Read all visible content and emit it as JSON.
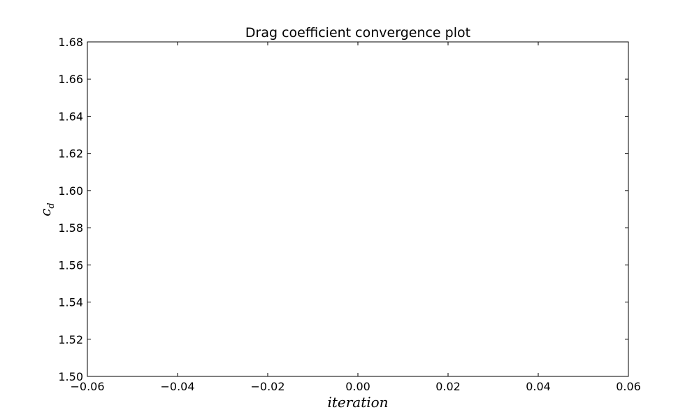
{
  "chart_data": {
    "type": "line",
    "title": "Drag coefficient convergence plot",
    "xlabel": "iteration",
    "ylabel": "c",
    "ylabel_subscript": "d",
    "xlim": [
      -0.06,
      0.06
    ],
    "ylim": [
      1.5,
      1.68
    ],
    "xticks": [
      -0.06,
      -0.04,
      -0.02,
      0.0,
      0.02,
      0.04,
      0.06
    ],
    "yticks": [
      1.5,
      1.52,
      1.54,
      1.56,
      1.58,
      1.6,
      1.62,
      1.64,
      1.66,
      1.68
    ],
    "xtick_labels": [
      "−0.06",
      "−0.04",
      "−0.02",
      "0.00",
      "0.02",
      "0.04",
      "0.06"
    ],
    "ytick_labels": [
      "1.50",
      "1.52",
      "1.54",
      "1.56",
      "1.58",
      "1.60",
      "1.62",
      "1.64",
      "1.66",
      "1.68"
    ],
    "series": [
      {
        "x": [],
        "values": []
      }
    ],
    "grid": false
  }
}
